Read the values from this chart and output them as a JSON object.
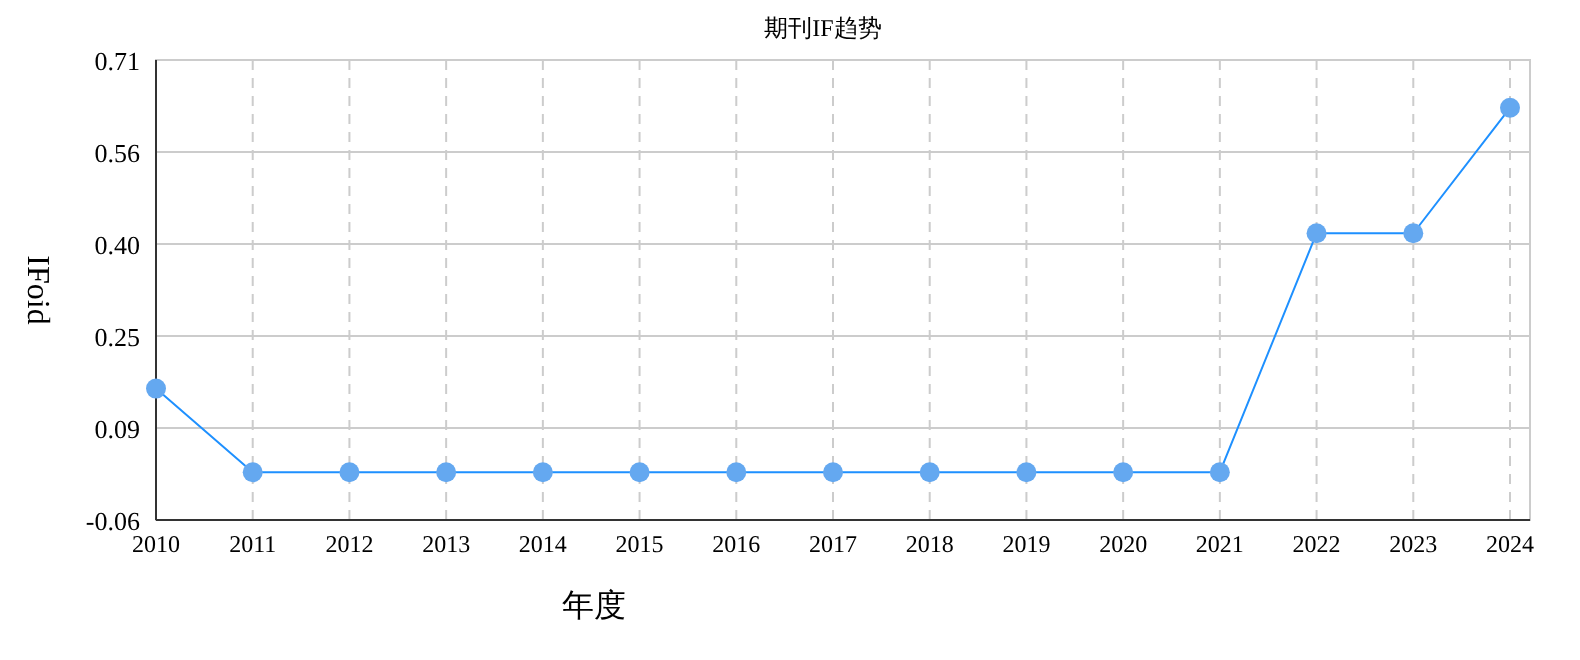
{
  "chart_data": {
    "type": "line",
    "title": "期刊IF趋势",
    "xlabel": "年度",
    "ylabel": "IFoid",
    "categories": [
      "2010",
      "2011",
      "2012",
      "2013",
      "2014",
      "2015",
      "2016",
      "2017",
      "2018",
      "2019",
      "2020",
      "2021",
      "2022",
      "2023",
      "2024"
    ],
    "series": [
      {
        "color": "#1e90ff",
        "values": [
          0.16,
          0.02,
          0.02,
          0.02,
          0.02,
          0.02,
          0.02,
          0.02,
          0.02,
          0.02,
          0.02,
          0.02,
          0.42,
          0.42,
          0.63
        ]
      }
    ],
    "ylim": [
      -0.06,
      0.71
    ],
    "yticks": [
      -0.06,
      {
        "value": 0.094,
        "label": "0.09"
      },
      {
        "value": 0.248,
        "label": "0.25"
      },
      {
        "value": 0.402,
        "label": "0.40"
      },
      {
        "value": 0.556,
        "label": "0.56"
      },
      0.71
    ],
    "grid": true,
    "marker": "circle",
    "line_style": "solid"
  }
}
